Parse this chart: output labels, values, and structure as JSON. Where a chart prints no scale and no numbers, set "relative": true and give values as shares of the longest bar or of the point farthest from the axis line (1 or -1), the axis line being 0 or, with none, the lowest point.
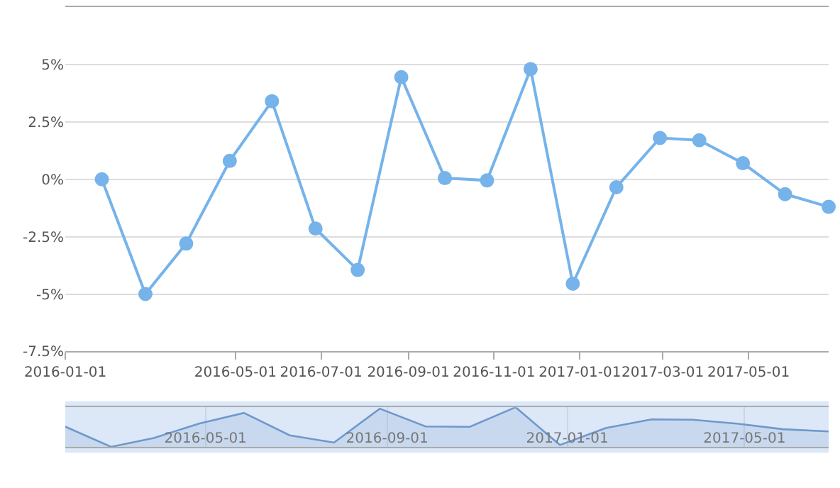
{
  "chart_data": [
    {
      "type": "line",
      "x": [
        "2016-01-27",
        "2016-02-27",
        "2016-03-27",
        "2016-04-27",
        "2016-05-27",
        "2016-06-27",
        "2016-07-27",
        "2016-08-27",
        "2016-09-27",
        "2016-10-27",
        "2016-11-27",
        "2016-12-27",
        "2017-01-27",
        "2017-02-27",
        "2017-03-27",
        "2017-04-27",
        "2017-05-27",
        "2017-06-27"
      ],
      "series": [
        {
          "color": "#75b3ea",
          "values": [
            0.0,
            -5.0,
            -2.8,
            0.8,
            3.4,
            -2.15,
            -3.95,
            4.45,
            0.05,
            -0.05,
            4.8,
            -4.55,
            -0.35,
            1.8,
            1.7,
            0.7,
            -0.65,
            -1.2
          ]
        }
      ],
      "xlim": [
        "2016-01-01",
        "2017-06-27"
      ],
      "xticks": [
        {
          "value": "2016-01-01",
          "label": "2016-01-01"
        },
        {
          "value": "2016-05-01",
          "label": "2016-05-01"
        },
        {
          "value": "2016-07-01",
          "label": "2016-07-01"
        },
        {
          "value": "2016-09-01",
          "label": "2016-09-01"
        },
        {
          "value": "2016-11-01",
          "label": "2016-11-01"
        },
        {
          "value": "2017-01-01",
          "label": "2017-01-01"
        },
        {
          "value": "2017-03-01",
          "label": "2017-03-01"
        },
        {
          "value": "2017-05-01",
          "label": "2017-05-01"
        }
      ],
      "ylim": [
        -7.5,
        7.5
      ],
      "yticks": [
        {
          "value": -7.5,
          "label": "-7.5%"
        },
        {
          "value": -5,
          "label": "-5%"
        },
        {
          "value": -2.5,
          "label": "-2.5%"
        },
        {
          "value": 0,
          "label": "0%"
        },
        {
          "value": 2.5,
          "label": "2.5%"
        },
        {
          "value": 5,
          "label": "5%"
        }
      ],
      "grid": "y",
      "marker": "circle",
      "line_style": "solid"
    },
    {
      "type": "area",
      "relative": true,
      "x": [
        "2016-01-27",
        "2016-02-27",
        "2016-03-27",
        "2016-04-27",
        "2016-05-27",
        "2016-06-27",
        "2016-07-27",
        "2016-08-27",
        "2016-09-27",
        "2016-10-27",
        "2016-11-27",
        "2016-12-27",
        "2017-01-27",
        "2017-02-27",
        "2017-03-27",
        "2017-04-27",
        "2017-05-27",
        "2017-06-27"
      ],
      "series": [
        {
          "color": "#6f98cc",
          "values": [
            0.51,
            0,
            0.224,
            0.592,
            0.857,
            0.291,
            0.107,
            0.964,
            0.515,
            0.505,
            1,
            0.046,
            0.474,
            0.694,
            0.684,
            0.582,
            0.444,
            0.388
          ]
        }
      ],
      "xlim": [
        "2016-01-27",
        "2017-06-27"
      ],
      "xticks": [
        {
          "value": "2016-05-01",
          "label": "2016-05-01"
        },
        {
          "value": "2016-09-01",
          "label": "2016-09-01"
        },
        {
          "value": "2017-01-01",
          "label": "2017-01-01"
        },
        {
          "value": "2017-05-01",
          "label": "2017-05-01"
        }
      ],
      "grid": "x",
      "marker": "none",
      "line_style": "solid"
    }
  ]
}
